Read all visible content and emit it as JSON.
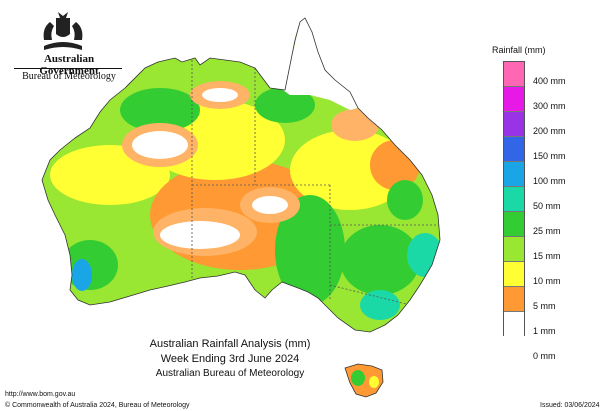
{
  "header": {
    "org_name": "Australian Government",
    "agency_name": "Bureau of Meteorology"
  },
  "legend": {
    "title": "Rainfall (mm)",
    "items": [
      {
        "label": "400 mm",
        "color": "#ff66b3"
      },
      {
        "label": "300 mm",
        "color": "#e619e6"
      },
      {
        "label": "200 mm",
        "color": "#9933e6"
      },
      {
        "label": "150 mm",
        "color": "#3366e6"
      },
      {
        "label": "100 mm",
        "color": "#1aa6e6"
      },
      {
        "label": "50 mm",
        "color": "#1ad9a6"
      },
      {
        "label": "25 mm",
        "color": "#33cc33"
      },
      {
        "label": "15 mm",
        "color": "#99e633"
      },
      {
        "label": "10 mm",
        "color": "#ffff33"
      },
      {
        "label": "5 mm",
        "color": "#ff9933"
      },
      {
        "label": "1 mm",
        "color": "#ffb366"
      },
      {
        "label": "0 mm",
        "color": "#ffffff"
      }
    ]
  },
  "caption": {
    "line1": "Australian Rainfall Analysis (mm)",
    "line2": "Week Ending 3rd June 2024",
    "line3": "Australian Bureau of Meteorology"
  },
  "footer": {
    "url": "http://www.bom.gov.au",
    "copyright": "© Commonwealth of Australia 2024, Bureau of Meteorology",
    "issued": "Issued: 03/06/2024"
  }
}
